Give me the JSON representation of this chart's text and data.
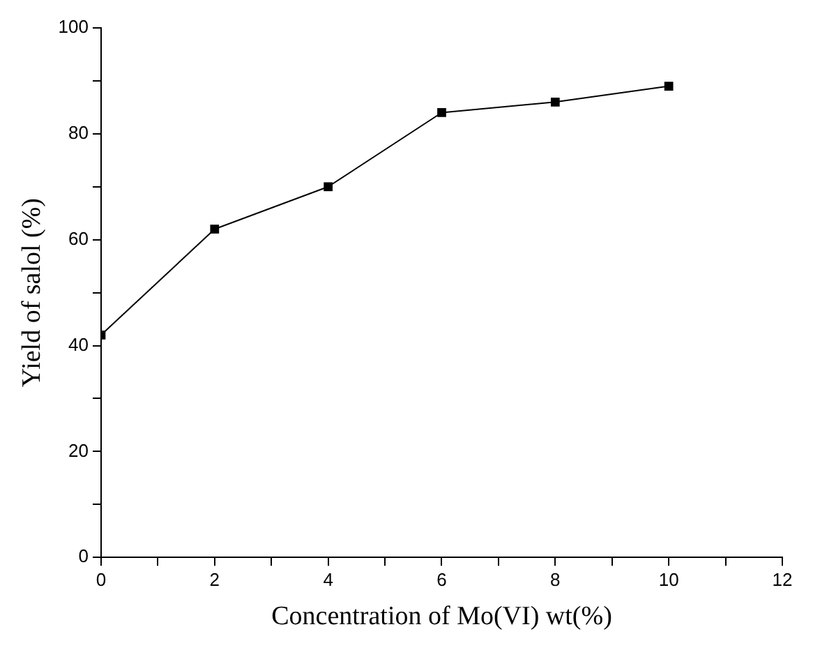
{
  "chart_data": {
    "type": "line",
    "xlabel": "Concentration of Mo(VI) wt(%)",
    "ylabel": "Yield of salol (%)",
    "x": [
      0,
      2,
      4,
      6,
      8,
      10
    ],
    "series": [
      {
        "color": "#000000",
        "values": [
          42,
          62,
          70,
          84,
          86,
          89
        ]
      }
    ],
    "xlim": [
      0,
      12
    ],
    "xticks": [
      0,
      {
        "value": 1,
        "label": null
      },
      2,
      {
        "value": 3,
        "label": null
      },
      4,
      {
        "value": 5,
        "label": null
      },
      6,
      {
        "value": 7,
        "label": null
      },
      8,
      {
        "value": 9,
        "label": null
      },
      10,
      {
        "value": 11,
        "label": null
      },
      12
    ],
    "ylim": [
      0,
      100
    ],
    "yticks": [
      0,
      {
        "value": 10,
        "label": null
      },
      20,
      {
        "value": 30,
        "label": null
      },
      40,
      {
        "value": 50,
        "label": null
      },
      60,
      {
        "value": 70,
        "label": null
      },
      80,
      {
        "value": 90,
        "label": null
      },
      100
    ],
    "grid": false,
    "legend": false,
    "marker": "square",
    "line_style": "solid"
  }
}
